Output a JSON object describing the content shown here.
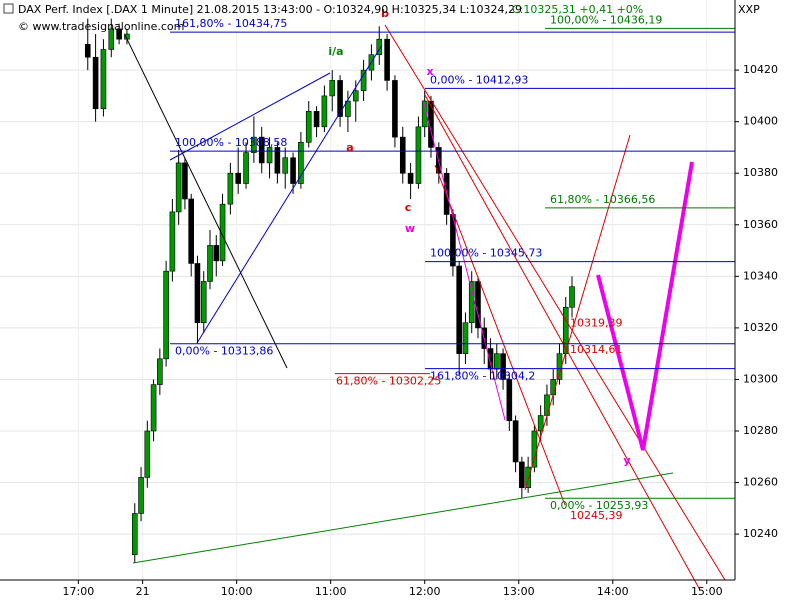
{
  "header": {
    "instrument": "DAX Perf. Index [.DAX  1 Minute] 21.08.2015 13:43:00 - O:10324,90 H:10325,34 L:10324,29",
    "change": "C:10325,31 +0,41 +0%",
    "copyright": "© www.tradesignalonline.com",
    "axis_name": "XXP"
  },
  "chart_data": {
    "type": "candlestick",
    "x": [
      6,
      11,
      16,
      21,
      26,
      31,
      36,
      40,
      44,
      48,
      52,
      56,
      60,
      64,
      68,
      72,
      76,
      80,
      84,
      88,
      92,
      97,
      102,
      107,
      112,
      117,
      122,
      127,
      132,
      137,
      142,
      147,
      152,
      157,
      162,
      167,
      172,
      177,
      182,
      187,
      192,
      197,
      202,
      207,
      212,
      217,
      221,
      225,
      230,
      235,
      239,
      243,
      247,
      251,
      255,
      259,
      263,
      267,
      271,
      275,
      279,
      283,
      287,
      291,
      295,
      299,
      303,
      307,
      311,
      315
    ],
    "open": [
      10430,
      10425,
      10405,
      10428,
      10436,
      10432,
      10232,
      10248,
      10262,
      10280,
      10298,
      10308,
      10342,
      10365,
      10384,
      10370,
      10345,
      10322,
      10338,
      10352,
      10346,
      10368,
      10380,
      10376,
      10388,
      10394,
      10384,
      10390,
      10380,
      10386,
      10376,
      10392,
      10404,
      10398,
      10410,
      10416,
      10402,
      10408,
      10412,
      10420,
      10426,
      10432,
      10416,
      10394,
      10380,
      10376,
      10398,
      10408,
      10390,
      10380,
      10364,
      10344,
      10310,
      10322,
      10338,
      10320,
      10312,
      10304,
      10310,
      10300,
      10284,
      10268,
      10258,
      10266,
      10280,
      10286,
      10294,
      10300,
      10310,
      10328
    ],
    "high": [
      10440,
      10434,
      10432,
      10440,
      10438,
      10436,
      10252,
      10266,
      10284,
      10300,
      10312,
      10346,
      10370,
      10389,
      10386,
      10372,
      10348,
      10342,
      10358,
      10356,
      10372,
      10384,
      10390,
      10392,
      10402,
      10398,
      10394,
      10392,
      10390,
      10388,
      10396,
      10408,
      10406,
      10414,
      10420,
      10418,
      10412,
      10416,
      10424,
      10430,
      10437,
      10434,
      10418,
      10398,
      10384,
      10402,
      10412,
      10410,
      10392,
      10382,
      10366,
      10346,
      10326,
      10342,
      10340,
      10324,
      10316,
      10314,
      10312,
      10302,
      10286,
      10270,
      10270,
      10282,
      10290,
      10298,
      10304,
      10314,
      10332,
      10340
    ],
    "low": [
      10420,
      10400,
      10402,
      10425,
      10430,
      10430,
      10229,
      10245,
      10258,
      10276,
      10294,
      10305,
      10338,
      10360,
      10366,
      10340,
      10314,
      10318,
      10335,
      10340,
      10344,
      10364,
      10372,
      10374,
      10384,
      10380,
      10378,
      10376,
      10374,
      10372,
      10374,
      10390,
      10394,
      10396,
      10404,
      10398,
      10396,
      10400,
      10408,
      10416,
      10422,
      10412,
      10390,
      10376,
      10370,
      10374,
      10394,
      10386,
      10376,
      10360,
      10340,
      10302,
      10306,
      10318,
      10316,
      10306,
      10300,
      10300,
      10296,
      10280,
      10264,
      10254,
      10256,
      10264,
      10276,
      10282,
      10290,
      10298,
      10306,
      10324
    ],
    "close": [
      10425,
      10405,
      10428,
      10436,
      10432,
      10434,
      10248,
      10262,
      10280,
      10298,
      10308,
      10342,
      10365,
      10384,
      10370,
      10345,
      10322,
      10338,
      10352,
      10346,
      10368,
      10380,
      10376,
      10388,
      10394,
      10384,
      10390,
      10380,
      10386,
      10376,
      10392,
      10404,
      10398,
      10410,
      10416,
      10402,
      10408,
      10412,
      10420,
      10426,
      10432,
      10416,
      10394,
      10380,
      10376,
      10398,
      10408,
      10390,
      10380,
      10364,
      10344,
      10310,
      10322,
      10338,
      10320,
      10312,
      10304,
      10310,
      10300,
      10284,
      10268,
      10258,
      10266,
      10280,
      10286,
      10294,
      10300,
      10310,
      10328,
      10336
    ],
    "up_color": "#009a00",
    "down_color": "#000000",
    "xlim": [
      -50,
      419
    ],
    "xticks": [
      {
        "value": 0,
        "label": "17:00"
      },
      {
        "value": 41,
        "label": "21"
      },
      {
        "value": 101,
        "label": "10:00"
      },
      {
        "value": 161,
        "label": "11:00"
      },
      {
        "value": 221,
        "label": "12:00"
      },
      {
        "value": 281,
        "label": "13:00"
      },
      {
        "value": 341,
        "label": "14:00"
      },
      {
        "value": 401,
        "label": "15:00"
      }
    ],
    "ylim": [
      10222.2,
      10447.2
    ],
    "yticks": [
      10240,
      10260,
      10280,
      10300,
      10320,
      10340,
      10360,
      10380,
      10400,
      10420
    ],
    "grid": true,
    "levels": [
      {
        "label": "161,80% - 10434,75",
        "value": 10434.75,
        "color": "#0000cc"
      },
      {
        "label": "100,00% - 10388,58",
        "value": 10388.58,
        "color": "#0000cc"
      },
      {
        "label": "0,00% - 10313,86",
        "value": 10313.86,
        "color": "#0000cc"
      },
      {
        "label": "0,00% - 10412,93",
        "value": 10412.93,
        "color": "#0000cc"
      },
      {
        "label": "100,00% - 10345,73",
        "value": 10345.73,
        "color": "#0000cc"
      },
      {
        "label": "161,80% - 10304,2",
        "value": 10304.2,
        "color": "#0000cc"
      },
      {
        "label": "100,00% - 10436,19",
        "value": 10436.19,
        "color": "#007a00"
      },
      {
        "label": "61,80% - 10366,56",
        "value": 10366.56,
        "color": "#007a00"
      },
      {
        "label": "0,00% - 10253,93",
        "value": 10253.93,
        "color": "#007a00"
      },
      {
        "label": "61,80% - 10302,25",
        "value": 10302.25,
        "color": "#dd0000"
      }
    ],
    "price_notes": [
      {
        "label": "10319,39",
        "value": 10319.39,
        "color": "#dd0000"
      },
      {
        "label": "10314,61",
        "value": 10314.61,
        "color": "#dd0000"
      },
      {
        "label": "10245,39",
        "value": 10245.39,
        "color": "#dd0000"
      }
    ],
    "wave_labels": [
      {
        "text": "i/a",
        "color": "#008000"
      },
      {
        "text": "b",
        "color": "#dd0000"
      },
      {
        "text": "a",
        "color": "#dd0000"
      },
      {
        "text": "x",
        "color": "#ee00ee"
      },
      {
        "text": "c",
        "color": "#dd0000"
      },
      {
        "text": "w",
        "color": "#ee00ee"
      },
      {
        "text": "y",
        "color": "#ee00ee"
      }
    ]
  }
}
